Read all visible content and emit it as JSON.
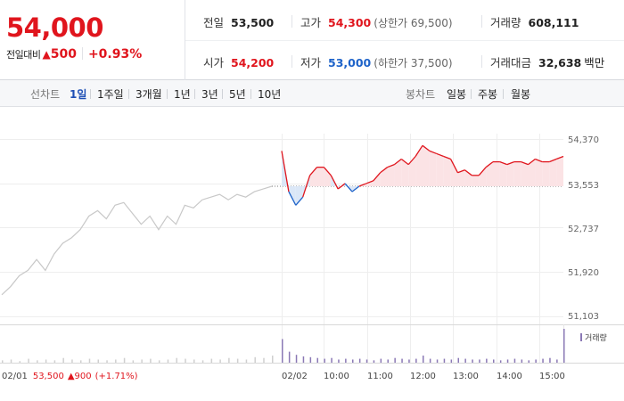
{
  "header": {
    "price": "54,000",
    "change_label": "전일대비",
    "change_arrow": "▲",
    "change_value": "500",
    "change_pct": "+0.93%",
    "prev_close": {
      "label": "전일",
      "value": "53,500"
    },
    "high": {
      "label": "고가",
      "value": "54,300",
      "sub": "(상한가 69,500)"
    },
    "volume": {
      "label": "거래량",
      "value": "608,111"
    },
    "open": {
      "label": "시가",
      "value": "54,200"
    },
    "low": {
      "label": "저가",
      "value": "53,000",
      "sub": "(하한가 37,500)"
    },
    "turnover": {
      "label": "거래대금",
      "value": "32,638",
      "unit": "백만"
    }
  },
  "tabs": {
    "line_label": "선차트",
    "line_tabs": [
      "1일",
      "1주일",
      "3개월",
      "1년",
      "3년",
      "5년",
      "10년"
    ],
    "active": "1일",
    "candle_label": "봉차트",
    "candle_tabs": [
      "일봉",
      "주봉",
      "월봉"
    ]
  },
  "colors": {
    "up": "#e0151d",
    "down": "#1e63c9",
    "prev_day_line": "#c8c8c8",
    "volume_prev": "#cfcfcf",
    "volume_today": "#8a78b5",
    "up_fill": "#fbe3e5",
    "down_fill": "#dbe7f7"
  },
  "chart_data": {
    "type": "line",
    "y_ticks": [
      "54,370",
      "53,553",
      "52,737",
      "51,920",
      "51,103"
    ],
    "ylim": [
      51103,
      54370
    ],
    "reference_price": 53500,
    "x_labels": [
      "02/02",
      "10:00",
      "11:00",
      "12:00",
      "13:00",
      "14:00",
      "15:00"
    ],
    "volume_legend": "거래량",
    "footer": {
      "date": "02/01",
      "close": "53,500",
      "arrow": "▲",
      "change": "900",
      "pct": "(+1.71%)"
    },
    "series": [
      {
        "kind": "previous-day",
        "values": [
          51500,
          51650,
          51850,
          51950,
          52150,
          51950,
          52250,
          52450,
          52550,
          52700,
          52950,
          53050,
          52900,
          53150,
          53200,
          53000,
          52800,
          52950,
          52700,
          52950,
          52800,
          53150,
          53100,
          53250,
          53300,
          53350,
          53250,
          53350,
          53300,
          53400,
          53450,
          53500
        ]
      },
      {
        "kind": "today",
        "values": [
          54150,
          53400,
          53150,
          53300,
          53700,
          53850,
          53850,
          53700,
          53450,
          53550,
          53400,
          53500,
          53550,
          53600,
          53750,
          53850,
          53900,
          54000,
          53900,
          54050,
          54250,
          54150,
          54100,
          54050,
          54000,
          53750,
          53800,
          53700,
          53700,
          53850,
          53950,
          53950,
          53900,
          53950,
          53950,
          53900,
          54000,
          53950,
          53950,
          54000,
          54050
        ]
      }
    ],
    "volume": {
      "previous_day": [
        3,
        4,
        2,
        5,
        3,
        4,
        3,
        6,
        4,
        3,
        5,
        4,
        3,
        4,
        6,
        3,
        4,
        5,
        3,
        4,
        6,
        5,
        4,
        3,
        5,
        4,
        6,
        5,
        4,
        7,
        6,
        9
      ],
      "today": [
        30,
        14,
        10,
        8,
        7,
        6,
        5,
        6,
        4,
        5,
        4,
        5,
        4,
        3,
        5,
        4,
        6,
        5,
        4,
        5,
        9,
        5,
        4,
        5,
        4,
        6,
        5,
        4,
        4,
        5,
        4,
        3,
        4,
        5,
        4,
        3,
        4,
        5,
        6,
        4,
        43
      ]
    }
  }
}
